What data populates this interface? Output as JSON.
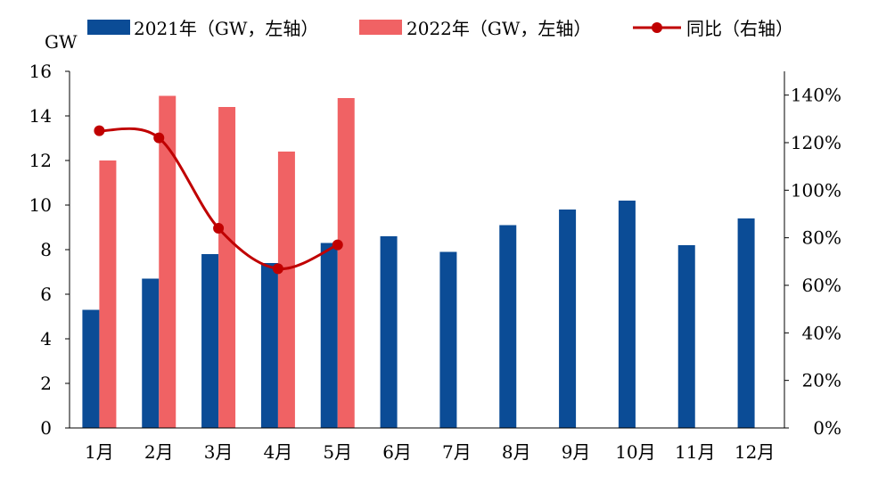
{
  "chart_data": {
    "type": "bar",
    "categories": [
      "1月",
      "2月",
      "3月",
      "4月",
      "5月",
      "6月",
      "7月",
      "8月",
      "9月",
      "10月",
      "11月",
      "12月"
    ],
    "series": [
      {
        "name": "2021年（GW，左轴",
        "kind": "bar",
        "axis": "left",
        "color": "#0B4C96",
        "values": [
          5.3,
          6.7,
          7.8,
          7.4,
          8.3,
          8.6,
          7.9,
          9.1,
          9.8,
          10.2,
          8.2,
          9.4
        ]
      },
      {
        "name": "2022年（GW，左轴",
        "kind": "bar",
        "axis": "left",
        "color": "#F06264",
        "values": [
          12.0,
          14.9,
          14.4,
          12.4,
          14.8,
          null,
          null,
          null,
          null,
          null,
          null,
          null
        ]
      },
      {
        "name": "同比（右轴",
        "kind": "line",
        "axis": "right",
        "color": "#C00000",
        "values": [
          125,
          122,
          84,
          67,
          77,
          null,
          null,
          null,
          null,
          null,
          null,
          null
        ]
      }
    ],
    "y_left": {
      "label": "GW",
      "ylim": [
        0,
        16
      ],
      "ticks": [
        "0",
        "2",
        "4",
        "6",
        "8",
        "10",
        "12",
        "14",
        "16"
      ]
    },
    "y_right": {
      "ylim": [
        0,
        150
      ],
      "ticks": [
        "0%",
        "20%",
        "40%",
        "60%",
        "80%",
        "100%",
        "120%",
        "140%"
      ]
    },
    "legend_position": "top",
    "grid": false
  }
}
